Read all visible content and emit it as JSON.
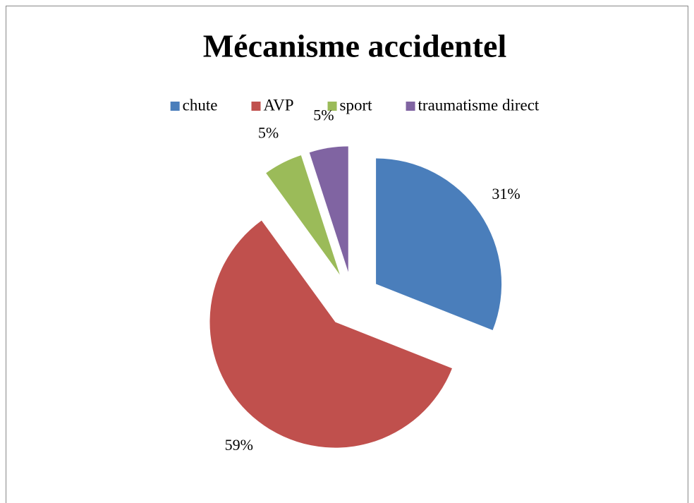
{
  "chart_data": {
    "type": "pie",
    "title": "Mécanisme accidentel",
    "categories": [
      "chute",
      "AVP",
      "sport",
      "traumatisme direct"
    ],
    "values": [
      31,
      59,
      5,
      5
    ],
    "value_labels": [
      "31%",
      "59%",
      "5%",
      "5%"
    ],
    "colors": [
      "#4a7ebb",
      "#c0504d",
      "#9bbb59",
      "#8064a2"
    ],
    "legend": "top"
  }
}
